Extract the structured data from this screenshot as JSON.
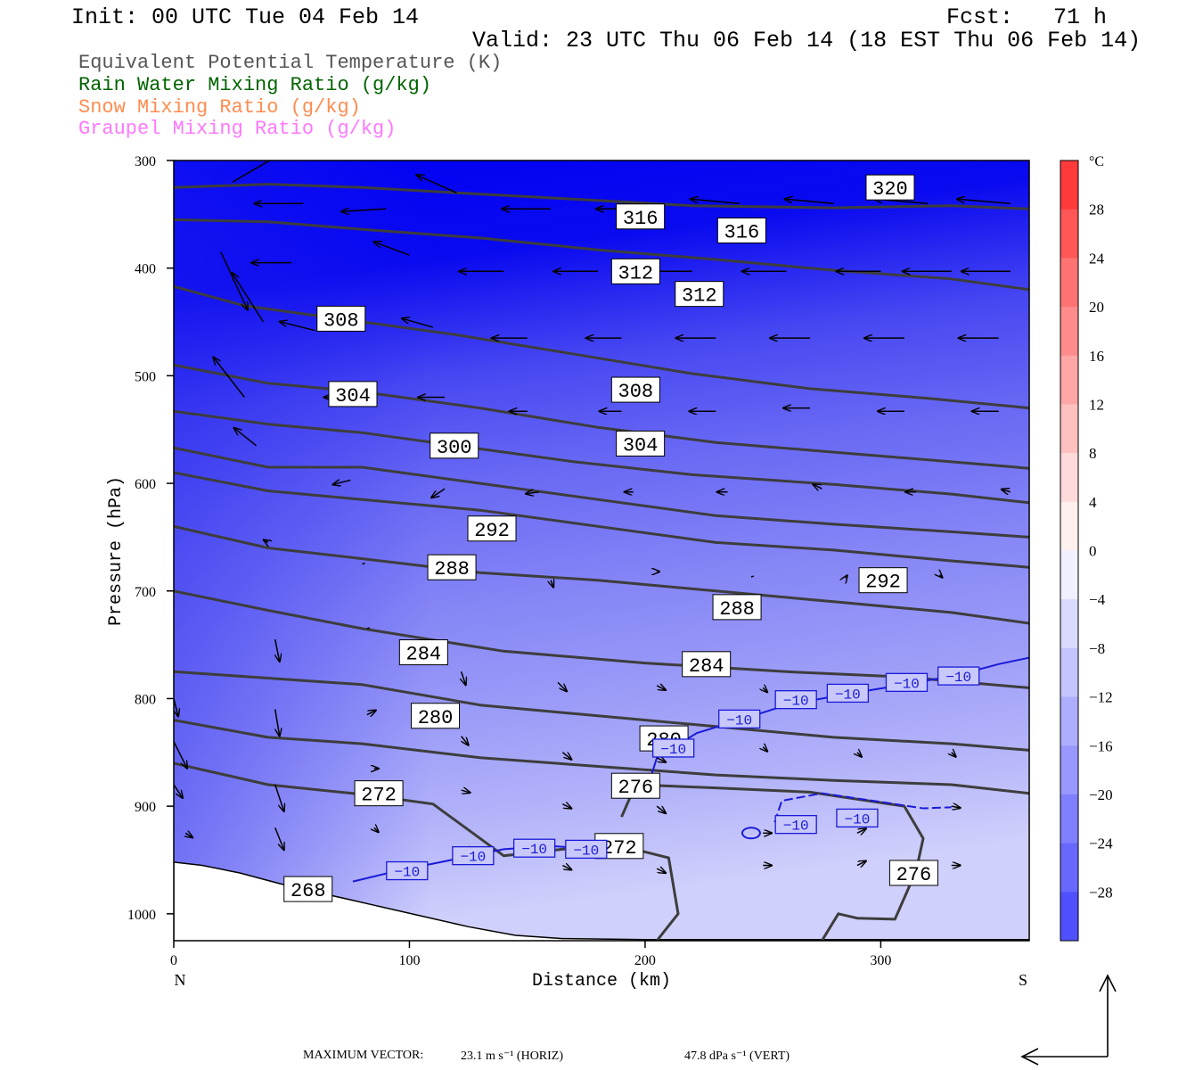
{
  "header": {
    "init": "Init: 00 UTC Tue 04 Feb 14",
    "fcst": "Fcst:   71 h",
    "valid": "Valid: 23 UTC Thu 06 Feb 14 (18 EST Thu 06 Feb 14)"
  },
  "legend": [
    {
      "label": "Equivalent Potential Temperature (K)",
      "color": "#555555"
    },
    {
      "label": "Rain Water Mixing Ratio (g/kg)",
      "color": "#006400"
    },
    {
      "label": "Snow Mixing Ratio (g/kg)",
      "color": "#ff8c50"
    },
    {
      "label": "Graupel Mixing Ratio (g/kg)",
      "color": "#ff78ff"
    }
  ],
  "chart_data": {
    "type": "cross-section",
    "xlabel": "Distance (km)",
    "ylabel": "Pressure (hPa)",
    "x_ticks": [
      0,
      100,
      200,
      300
    ],
    "y_ticks": [
      300,
      400,
      500,
      600,
      700,
      800,
      900,
      1000
    ],
    "xlim": [
      0,
      363
    ],
    "ylim": [
      300,
      1025
    ],
    "y_scale": "linear (pressure increasing downward)",
    "left_end_label": "N",
    "right_end_label": "S",
    "colorbar": {
      "unit": "°C",
      "tick_labels": [
        "28",
        "24",
        "20",
        "16",
        "12",
        "8",
        "4",
        "0",
        "−4",
        "−8",
        "−12",
        "−16",
        "−20",
        "−24",
        "−28"
      ],
      "range": [
        -32,
        32
      ],
      "cold_color": "#0000ff",
      "warm_color": "#ff0000"
    },
    "theta_e_labels": [
      {
        "text": "320",
        "x": 304,
        "p": 325
      },
      {
        "text": "316",
        "x": 198,
        "p": 352
      },
      {
        "text": "316",
        "x": 241,
        "p": 365
      },
      {
        "text": "312",
        "x": 196,
        "p": 403
      },
      {
        "text": "312",
        "x": 223,
        "p": 424
      },
      {
        "text": "308",
        "x": 71,
        "p": 447
      },
      {
        "text": "304",
        "x": 76,
        "p": 517
      },
      {
        "text": "308",
        "x": 196,
        "p": 513
      },
      {
        "text": "300",
        "x": 119,
        "p": 565
      },
      {
        "text": "304",
        "x": 198,
        "p": 563
      },
      {
        "text": "292",
        "x": 135,
        "p": 642
      },
      {
        "text": "288",
        "x": 118,
        "p": 678
      },
      {
        "text": "292",
        "x": 301,
        "p": 690
      },
      {
        "text": "288",
        "x": 239,
        "p": 715
      },
      {
        "text": "284",
        "x": 106,
        "p": 757
      },
      {
        "text": "284",
        "x": 226,
        "p": 768
      },
      {
        "text": "280",
        "x": 111,
        "p": 816
      },
      {
        "text": "280",
        "x": 208,
        "p": 837
      },
      {
        "text": "276",
        "x": 196,
        "p": 881
      },
      {
        "text": "272",
        "x": 87,
        "p": 888
      },
      {
        "text": "272",
        "x": 189,
        "p": 937
      },
      {
        "text": "276",
        "x": 314,
        "p": 962
      },
      {
        "text": "268",
        "x": 57,
        "p": 977
      }
    ],
    "temperature_labels": [
      {
        "text": "−10",
        "x": 99,
        "p": 960
      },
      {
        "text": "−10",
        "x": 127,
        "p": 946
      },
      {
        "text": "−10",
        "x": 153,
        "p": 939
      },
      {
        "text": "−10",
        "x": 175,
        "p": 940
      },
      {
        "text": "−10",
        "x": 212,
        "p": 846
      },
      {
        "text": "−10",
        "x": 240,
        "p": 819
      },
      {
        "text": "−10",
        "x": 264,
        "p": 801
      },
      {
        "text": "−10",
        "x": 286,
        "p": 795
      },
      {
        "text": "−10",
        "x": 311,
        "p": 785
      },
      {
        "text": "−10",
        "x": 333,
        "p": 779
      },
      {
        "text": "−10",
        "x": 264,
        "p": 917
      },
      {
        "text": "−10",
        "x": 290,
        "p": 911
      }
    ],
    "max_vector_label": "MAXIMUM VECTOR:",
    "max_vector_horiz": "23.1 m s⁻¹ (HORIZ)",
    "max_vector_vert": "47.8 dPa s⁻¹ (VERT)"
  }
}
